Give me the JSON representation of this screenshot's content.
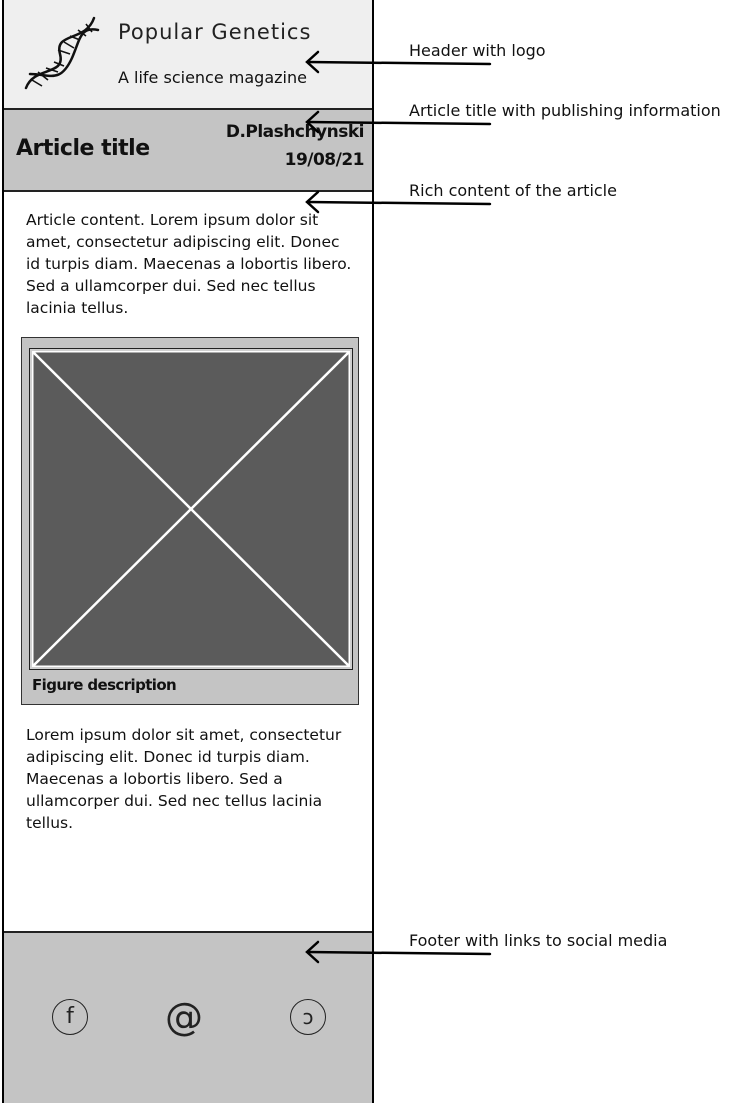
{
  "header": {
    "brand": "Popular Genetics",
    "tagline": "A life science magazine",
    "logo_icon": "dna-helix-icon"
  },
  "article": {
    "title": "Article title",
    "author": "D.Plashchynski",
    "date": "19/08/21",
    "intro": "Article content. Lorem ipsum dolor sit amet, consectetur adipiscing elit. Donec id turpis diam. Maecenas a lobortis libero. Sed a ullamcorper dui. Sed nec tellus lacinia tellus.",
    "figure_caption": "Figure description",
    "body": "Lorem ipsum dolor sit amet, consectetur adipiscing elit. Donec id turpis diam. Maecenas a lobortis libero. Sed a ullamcorper dui. Sed nec tellus lacinia tellus."
  },
  "footer": {
    "social": [
      {
        "icon": "facebook-icon",
        "glyph": "f"
      },
      {
        "icon": "email-at-icon",
        "glyph": "@"
      },
      {
        "icon": "social-c-icon",
        "glyph": "ↄ"
      }
    ]
  },
  "annotations": {
    "header": "Header with logo",
    "title": "Article title with publishing information",
    "content": "Rich content of the article",
    "footer": "Footer with links to social media"
  },
  "colors": {
    "header_bg": "#efefef",
    "panel_gray": "#c4c4c4",
    "placeholder_dark": "#5b5b5b"
  }
}
